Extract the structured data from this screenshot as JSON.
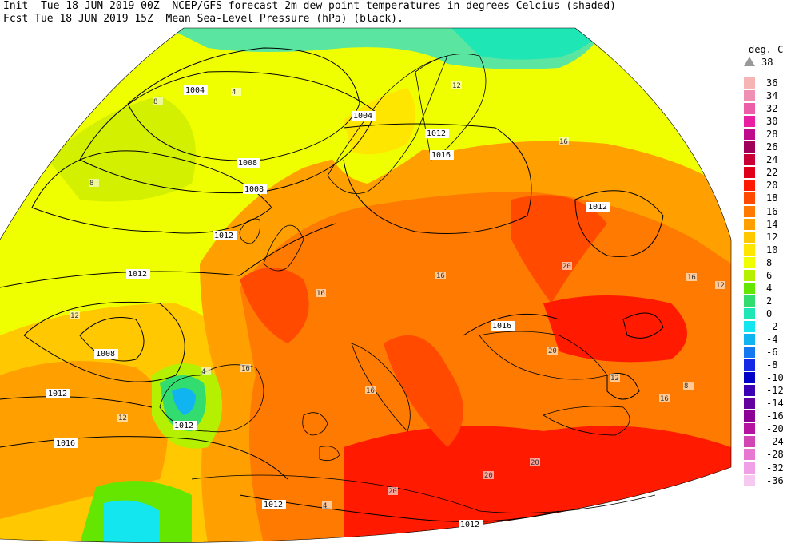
{
  "header": {
    "line1": "Init  Tue 18 JUN 2019 00Z  NCEP/GFS forecast 2m dew point temperatures in degrees Celcius (shaded)",
    "line2": "Fcst Tue 18 JUN 2019 15Z  Mean Sea-Level Pressure (hPa) (black)."
  },
  "legend": {
    "title": "deg. C",
    "top_label": "38",
    "entries": [
      {
        "label": "36",
        "color": "#f7b4b4"
      },
      {
        "label": "34",
        "color": "#f08fb4"
      },
      {
        "label": "32",
        "color": "#ec5fa8"
      },
      {
        "label": "30",
        "color": "#e81fa0"
      },
      {
        "label": "28",
        "color": "#c00a8c"
      },
      {
        "label": "26",
        "color": "#a0005a"
      },
      {
        "label": "24",
        "color": "#c80036"
      },
      {
        "label": "22",
        "color": "#e0001a"
      },
      {
        "label": "20",
        "color": "#ff1a00"
      },
      {
        "label": "18",
        "color": "#ff4a00"
      },
      {
        "label": "16",
        "color": "#ff7a00"
      },
      {
        "label": "14",
        "color": "#ffa000"
      },
      {
        "label": "12",
        "color": "#ffc800"
      },
      {
        "label": "10",
        "color": "#ffe600"
      },
      {
        "label": "8",
        "color": "#f0ff00"
      },
      {
        "label": "6",
        "color": "#b4f000"
      },
      {
        "label": "4",
        "color": "#64e600"
      },
      {
        "label": "2",
        "color": "#32dc6e"
      },
      {
        "label": "0",
        "color": "#1ee6b4"
      },
      {
        "label": "-2",
        "color": "#14e6f0"
      },
      {
        "label": "-4",
        "color": "#10b4f0"
      },
      {
        "label": "-6",
        "color": "#1478f0"
      },
      {
        "label": "-8",
        "color": "#1428e6"
      },
      {
        "label": "-10",
        "color": "#0000c8"
      },
      {
        "label": "-12",
        "color": "#3c00b4"
      },
      {
        "label": "-14",
        "color": "#6400a0"
      },
      {
        "label": "-16",
        "color": "#8c0096"
      },
      {
        "label": "-20",
        "color": "#b414a0"
      },
      {
        "label": "-24",
        "color": "#d246b4"
      },
      {
        "label": "-28",
        "color": "#e678d2"
      },
      {
        "label": "-32",
        "color": "#f0a0e6"
      },
      {
        "label": "-36",
        "color": "#f7c8f0"
      }
    ]
  },
  "isobars": [
    {
      "label": "1004"
    },
    {
      "label": "1008"
    },
    {
      "label": "1004"
    },
    {
      "label": "1008"
    },
    {
      "label": "1012"
    },
    {
      "label": "1012"
    },
    {
      "label": "1012"
    },
    {
      "label": "1016"
    },
    {
      "label": "1012"
    },
    {
      "label": "1008"
    },
    {
      "label": "1012"
    },
    {
      "label": "1012"
    },
    {
      "label": "1016"
    },
    {
      "label": "1012"
    },
    {
      "label": "1012"
    },
    {
      "label": "1016"
    }
  ],
  "dewpoint_labels": [
    "4",
    "8",
    "8",
    "12",
    "12",
    "16",
    "16",
    "16",
    "16",
    "20",
    "20",
    "20",
    "20",
    "12",
    "8",
    "4",
    "4",
    "12",
    "16",
    "16",
    "12",
    "16",
    "20"
  ]
}
